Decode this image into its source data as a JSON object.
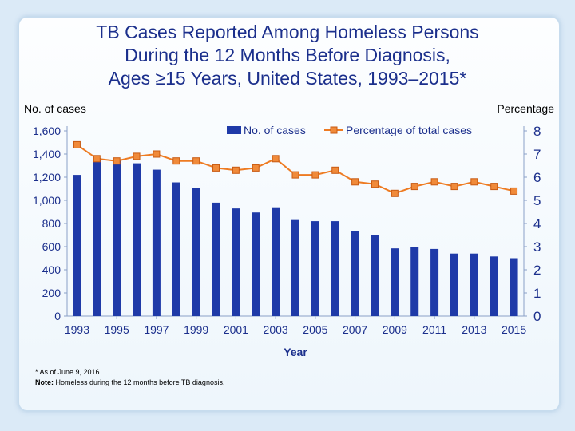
{
  "title_lines": [
    "TB Cases Reported Among Homeless Persons",
    "During the 12 Months Before Diagnosis,",
    "Ages ≥15 Years, United States, 1993–2015*"
  ],
  "footnotes": {
    "asterisk": "* As of June 9, 2016.",
    "note_label": "Note:",
    "note_text": " Homeless during the 12 months before TB diagnosis."
  },
  "colors": {
    "bar": "#1f3aa8",
    "line": "#ee7b22",
    "marker_fill": "#f08a3a",
    "marker_stroke": "#c85a12",
    "axis_text": "#1b2f8c",
    "title": "#1b2f8c"
  },
  "chart_data": {
    "type": "bar",
    "title": "TB Cases Reported Among Homeless Persons During the 12 Months Before Diagnosis, Ages ≥15 Years, United States, 1993–2015*",
    "xlabel": "Year",
    "ylabel": "No. of cases",
    "y2label": "Percentage",
    "ylim": [
      0,
      1600
    ],
    "y2lim": [
      0,
      8
    ],
    "yticks": [
      "0",
      "200",
      "400",
      "600",
      "800",
      "1,000",
      "1,200",
      "1,400",
      "1,600"
    ],
    "y2ticks": [
      "0",
      "1",
      "2",
      "3",
      "4",
      "5",
      "6",
      "7",
      "8"
    ],
    "xtick_labels": [
      "1993",
      "1995",
      "1997",
      "1999",
      "2001",
      "2003",
      "2005",
      "2007",
      "2009",
      "2011",
      "2013",
      "2015"
    ],
    "categories": [
      "1993",
      "1994",
      "1995",
      "1996",
      "1997",
      "1998",
      "1999",
      "2000",
      "2001",
      "2002",
      "2003",
      "2004",
      "2005",
      "2006",
      "2007",
      "2008",
      "2009",
      "2010",
      "2011",
      "2012",
      "2013",
      "2014",
      "2015"
    ],
    "legend_position": "top",
    "series": [
      {
        "name": "No. of cases",
        "type": "bar",
        "axis": "left",
        "values": [
          1220,
          1365,
          1355,
          1320,
          1265,
          1155,
          1105,
          980,
          930,
          895,
          940,
          830,
          820,
          820,
          735,
          700,
          585,
          600,
          580,
          540,
          540,
          515,
          500
        ]
      },
      {
        "name": "Percentage of total cases",
        "type": "line",
        "axis": "right",
        "values": [
          7.4,
          6.8,
          6.7,
          6.9,
          7.0,
          6.7,
          6.7,
          6.4,
          6.3,
          6.4,
          6.8,
          6.1,
          6.1,
          6.3,
          5.8,
          5.7,
          5.3,
          5.6,
          5.8,
          5.6,
          5.8,
          5.6,
          5.4
        ]
      }
    ]
  }
}
